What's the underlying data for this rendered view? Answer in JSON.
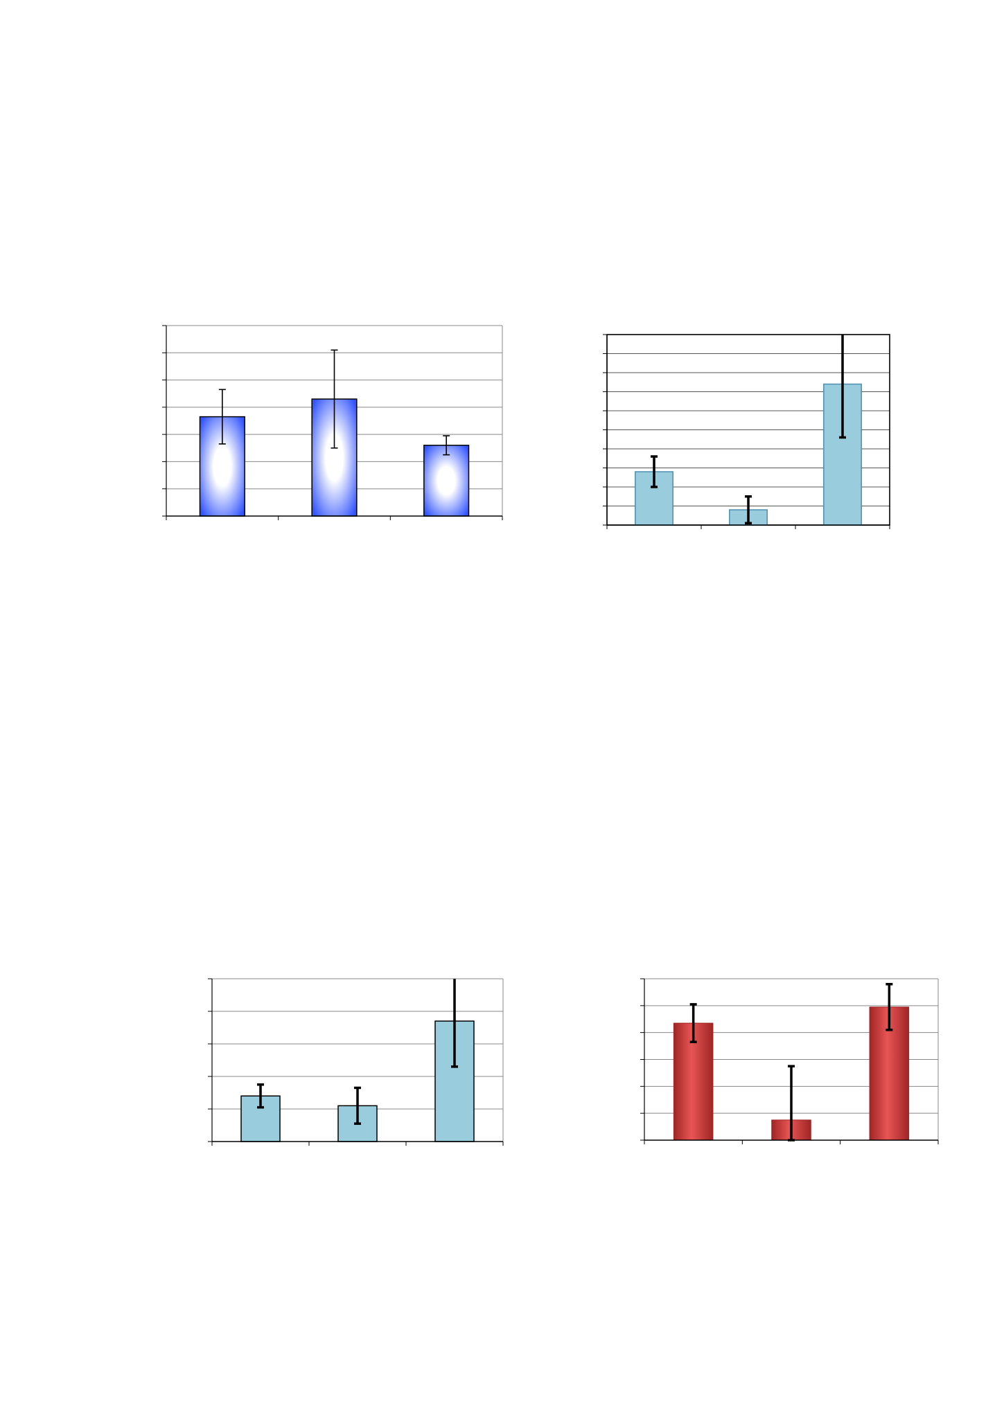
{
  "chart_data": [
    {
      "type": "bar",
      "categories": [
        "",
        "",
        ""
      ],
      "values": [
        3.65,
        4.3,
        2.6
      ],
      "errors": [
        1.0,
        1.8,
        0.35
      ],
      "ylim": [
        0,
        7
      ],
      "yticks": 7,
      "grid": true,
      "frame": "partial",
      "fill_style": "gradient",
      "colors": {
        "bar": "#3355ff",
        "bar_glow": "#ffffff",
        "error": "#000000",
        "grid": "#888888"
      },
      "xlabel": "",
      "ylabel": ""
    },
    {
      "type": "bar",
      "categories": [
        "",
        "",
        ""
      ],
      "values": [
        2.8,
        0.8,
        7.4
      ],
      "errors": [
        0.8,
        0.7,
        2.8
      ],
      "ylim": [
        0,
        10
      ],
      "yticks": 10,
      "grid": true,
      "frame": "full",
      "fill_style": "solid",
      "colors": {
        "bar": "#99ccdd",
        "bar_stroke": "#4d8fb0",
        "error": "#000000",
        "grid": "#555555"
      },
      "xlabel": "",
      "ylabel": ""
    },
    {
      "type": "bar",
      "categories": [
        "",
        "",
        ""
      ],
      "values": [
        1.4,
        1.1,
        3.7
      ],
      "errors": [
        0.35,
        0.55,
        1.4
      ],
      "ylim": [
        0,
        5
      ],
      "yticks": 5,
      "grid": true,
      "frame": "partial",
      "fill_style": "solid",
      "colors": {
        "bar": "#99ccdd",
        "bar_stroke": "#000000",
        "error": "#000000",
        "grid": "#888888"
      },
      "xlabel": "",
      "ylabel": ""
    },
    {
      "type": "bar",
      "categories": [
        "",
        "",
        ""
      ],
      "values": [
        4.35,
        0.75,
        4.95
      ],
      "errors": [
        0.7,
        2.0,
        0.85
      ],
      "ylim": [
        0,
        6
      ],
      "yticks": 6,
      "grid": true,
      "frame": "partial",
      "fill_style": "shaded",
      "colors": {
        "bar": "#cc3333",
        "bar_light": "#e85555",
        "bar_dark": "#a02525",
        "error": "#000000",
        "grid": "#888888"
      },
      "xlabel": "",
      "ylabel": ""
    }
  ]
}
